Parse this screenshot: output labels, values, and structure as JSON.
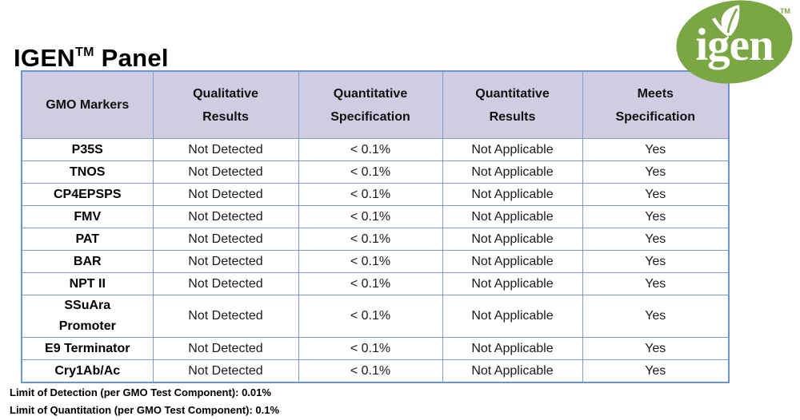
{
  "page": {
    "title_brand": "IGEN",
    "title_tm": "TM",
    "title_rest": " Panel"
  },
  "logo": {
    "text": "igen",
    "tm": "TM",
    "leaf_icon": "leaf-icon",
    "green": "#7aa744"
  },
  "table": {
    "headers": [
      "GMO Markers",
      "Qualitative\nResults",
      "Quantitative\nSpecification",
      "Quantitative\nResults",
      "Meets\nSpecification"
    ],
    "rows": [
      {
        "marker": "P35S",
        "qualitative": "Not Detected",
        "spec": "< 0.1%",
        "quantitative": "Not Applicable",
        "meets": "Yes"
      },
      {
        "marker": "TNOS",
        "qualitative": "Not Detected",
        "spec": "< 0.1%",
        "quantitative": "Not Applicable",
        "meets": "Yes"
      },
      {
        "marker": "CP4EPSPS",
        "qualitative": "Not Detected",
        "spec": "< 0.1%",
        "quantitative": "Not Applicable",
        "meets": "Yes"
      },
      {
        "marker": "FMV",
        "qualitative": "Not Detected",
        "spec": "< 0.1%",
        "quantitative": "Not Applicable",
        "meets": "Yes"
      },
      {
        "marker": "PAT",
        "qualitative": "Not Detected",
        "spec": "< 0.1%",
        "quantitative": "Not Applicable",
        "meets": "Yes"
      },
      {
        "marker": "BAR",
        "qualitative": "Not Detected",
        "spec": "< 0.1%",
        "quantitative": "Not Applicable",
        "meets": "Yes"
      },
      {
        "marker": "NPT II",
        "qualitative": "Not Detected",
        "spec": "< 0.1%",
        "quantitative": "Not Applicable",
        "meets": "Yes"
      },
      {
        "marker": "SSuAra\nPromoter",
        "qualitative": "Not Detected",
        "spec": "< 0.1%",
        "quantitative": "Not Applicable",
        "meets": "Yes"
      },
      {
        "marker": "E9 Terminator",
        "qualitative": "Not Detected",
        "spec": "< 0.1%",
        "quantitative": "Not Applicable",
        "meets": "Yes"
      },
      {
        "marker": "Cry1Ab/Ac",
        "qualitative": "Not Detected",
        "spec": "< 0.1%",
        "quantitative": "Not Applicable",
        "meets": "Yes"
      }
    ]
  },
  "footnotes": {
    "line1": "Limit of Detection (per GMO Test Component): 0.01%",
    "line2": "Limit of Quantitation (per GMO Test Component): 0.1%"
  },
  "colors": {
    "header_bg": "#d2cce3",
    "border_inner": "#7c9cd3",
    "border_outer": "#6b93cd",
    "logo_green": "#7aa744"
  }
}
